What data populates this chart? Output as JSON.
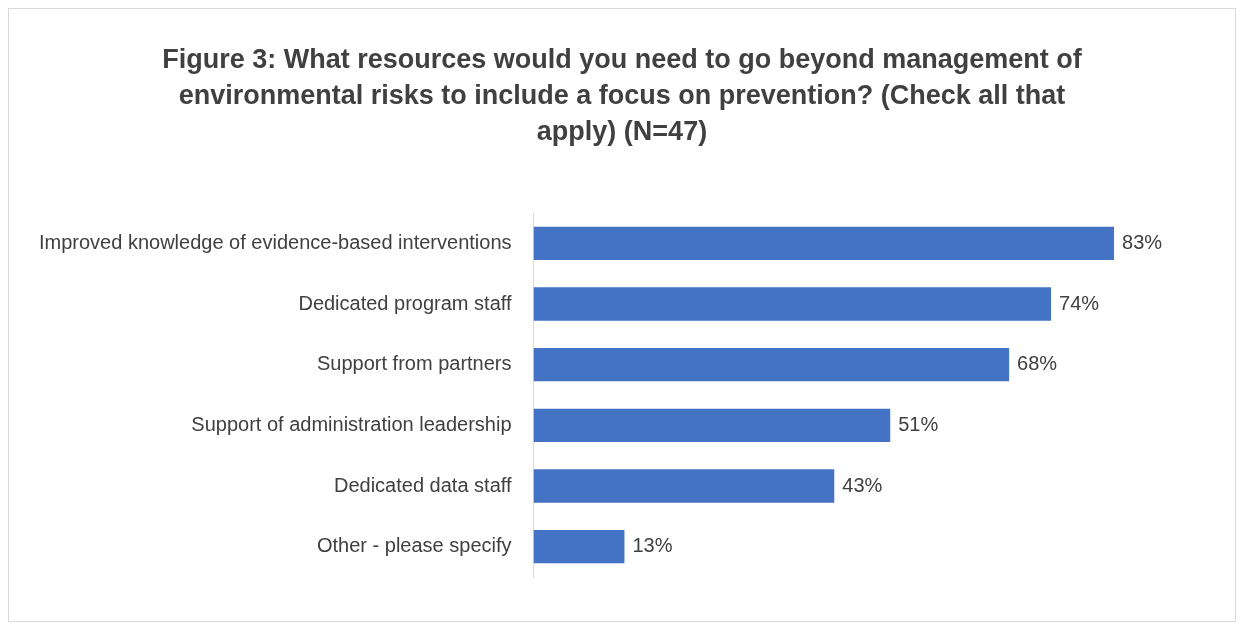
{
  "chart_data": {
    "type": "bar",
    "orientation": "horizontal",
    "title": "Figure 3: What resources would you need to go beyond management of environmental risks to include a focus on prevention? (Check all that apply) (N=47)",
    "categories": [
      "Improved knowledge of evidence-based interventions",
      "Dedicated program staff",
      "Support from partners",
      "Support of administration leadership",
      "Dedicated data staff",
      "Other - please specify"
    ],
    "values": [
      83,
      74,
      68,
      51,
      43,
      13
    ],
    "value_labels": [
      "83%",
      "74%",
      "68%",
      "51%",
      "43%",
      "13%"
    ],
    "color": "#4472c4",
    "legend": false
  }
}
